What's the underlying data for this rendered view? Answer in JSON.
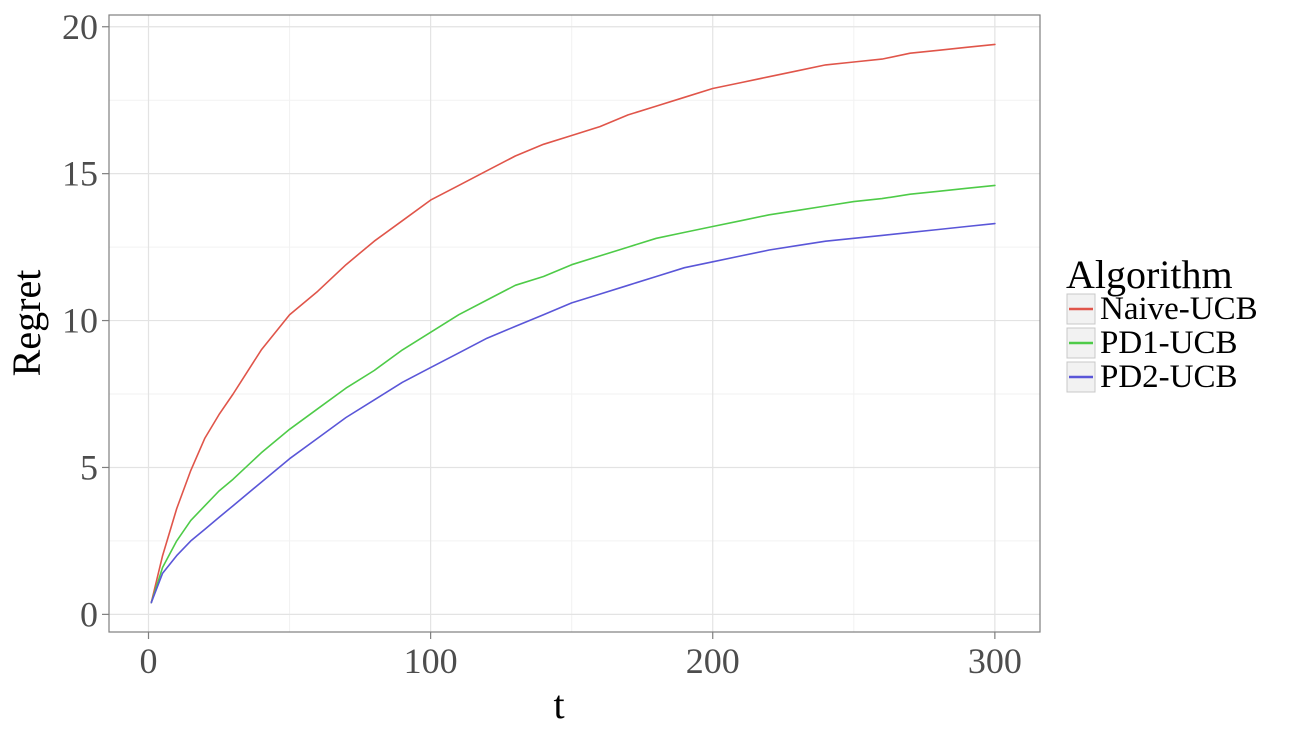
{
  "chart_data": {
    "type": "line",
    "title": "",
    "xlabel": "t",
    "ylabel": "Regret",
    "xlim": [
      -14,
      316
    ],
    "ylim": [
      -0.6,
      20.4
    ],
    "x_ticks": [
      0,
      100,
      200,
      300
    ],
    "y_ticks": [
      0,
      5,
      10,
      15,
      20
    ],
    "x_tick_labels": [
      "0",
      "100",
      "200",
      "300"
    ],
    "y_tick_labels": [
      "0",
      "5",
      "10",
      "15",
      "20"
    ],
    "grid": true,
    "legend": {
      "title": "Algorithm",
      "placement": "right"
    },
    "x": [
      1,
      5,
      10,
      15,
      20,
      25,
      30,
      40,
      50,
      60,
      70,
      80,
      90,
      100,
      110,
      120,
      130,
      140,
      150,
      160,
      170,
      180,
      190,
      200,
      210,
      220,
      230,
      240,
      250,
      260,
      270,
      280,
      290,
      300
    ],
    "series": [
      {
        "name": "Naive-UCB",
        "color": "#e0554a",
        "values": [
          0.4,
          2.0,
          3.6,
          4.9,
          6.0,
          6.8,
          7.5,
          9.0,
          10.2,
          11.0,
          11.9,
          12.7,
          13.4,
          14.1,
          14.6,
          15.1,
          15.6,
          16.0,
          16.3,
          16.6,
          17.0,
          17.3,
          17.6,
          17.9,
          18.1,
          18.3,
          18.5,
          18.7,
          18.8,
          18.9,
          19.1,
          19.2,
          19.3,
          19.4
        ]
      },
      {
        "name": "PD1-UCB",
        "color": "#4ecb48",
        "values": [
          0.4,
          1.6,
          2.5,
          3.2,
          3.7,
          4.2,
          4.6,
          5.5,
          6.3,
          7.0,
          7.7,
          8.3,
          9.0,
          9.6,
          10.2,
          10.7,
          11.2,
          11.5,
          11.9,
          12.2,
          12.5,
          12.8,
          13.0,
          13.2,
          13.4,
          13.6,
          13.75,
          13.9,
          14.05,
          14.15,
          14.3,
          14.4,
          14.5,
          14.6
        ]
      },
      {
        "name": "PD2-UCB",
        "color": "#5a56d8",
        "values": [
          0.4,
          1.4,
          2.0,
          2.5,
          2.9,
          3.3,
          3.7,
          4.5,
          5.3,
          6.0,
          6.7,
          7.3,
          7.9,
          8.4,
          8.9,
          9.4,
          9.8,
          10.2,
          10.6,
          10.9,
          11.2,
          11.5,
          11.8,
          12.0,
          12.2,
          12.4,
          12.55,
          12.7,
          12.8,
          12.9,
          13.0,
          13.1,
          13.2,
          13.3
        ]
      }
    ]
  }
}
